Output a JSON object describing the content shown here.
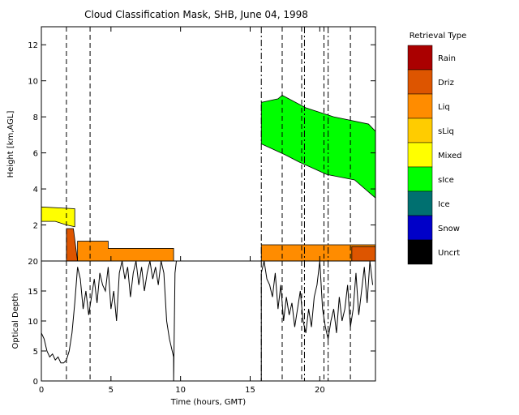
{
  "chart_data": [
    {
      "type": "heatmap",
      "title": "Cloud Classification Mask, SHB, June 04, 1998",
      "xlabel": "",
      "ylabel": "Height [km,AGL]",
      "xlim": [
        0,
        24
      ],
      "ylim": [
        0,
        13
      ],
      "xticks": [
        "0",
        "5",
        "10",
        "15",
        "20"
      ],
      "yticks": [
        "2",
        "4",
        "6",
        "8",
        "10",
        "12"
      ],
      "vlines_dashed": [
        1.8,
        3.5,
        17.3,
        18.7,
        20.3,
        22.2
      ],
      "vlines_dashdot": [
        15.8,
        18.9,
        20.6
      ],
      "regions": [
        {
          "class": "Mixed",
          "color": "#ffff00",
          "points": [
            [
              0,
              2.2
            ],
            [
              0,
              3.0
            ],
            [
              2.4,
              2.9
            ],
            [
              2.4,
              1.9
            ],
            [
              1.8,
              2.0
            ],
            [
              1.0,
              2.2
            ]
          ]
        },
        {
          "class": "Driz",
          "color": "#dd5500",
          "points": [
            [
              1.8,
              0
            ],
            [
              1.8,
              1.8
            ],
            [
              2.3,
              1.8
            ],
            [
              2.6,
              0
            ]
          ]
        },
        {
          "class": "Liq",
          "color": "#ff8c00",
          "points": [
            [
              2.6,
              0
            ],
            [
              2.6,
              1.1
            ],
            [
              4.8,
              1.1
            ],
            [
              4.8,
              0.7
            ],
            [
              5.5,
              0.7
            ],
            [
              9.5,
              0.7
            ],
            [
              9.5,
              0
            ]
          ]
        },
        {
          "class": "Liq",
          "color": "#ff8c00",
          "points": [
            [
              15.8,
              0
            ],
            [
              15.8,
              0.9
            ],
            [
              24,
              0.9
            ],
            [
              24,
              0
            ]
          ]
        },
        {
          "class": "Driz",
          "color": "#dd5500",
          "points": [
            [
              22.3,
              0
            ],
            [
              22.3,
              0.8
            ],
            [
              24,
              0.8
            ],
            [
              24,
              0
            ]
          ]
        },
        {
          "class": "sIce",
          "color": "#00ff00",
          "points": [
            [
              15.8,
              6.5
            ],
            [
              15.8,
              8.8
            ],
            [
              17.0,
              9.0
            ],
            [
              17.3,
              9.2
            ],
            [
              19.0,
              8.5
            ],
            [
              21.0,
              8.0
            ],
            [
              23.5,
              7.6
            ],
            [
              24,
              7.2
            ],
            [
              24,
              3.5
            ],
            [
              22.5,
              4.5
            ],
            [
              20.5,
              4.8
            ],
            [
              18.5,
              5.5
            ],
            [
              17.5,
              5.9
            ]
          ]
        }
      ],
      "colorbar": {
        "title": "Retrieval Type",
        "classes": [
          {
            "label": "Rain",
            "color": "#aa0000"
          },
          {
            "label": "Driz",
            "color": "#dd5500"
          },
          {
            "label": "Liq",
            "color": "#ff8c00"
          },
          {
            "label": "sLiq",
            "color": "#ffcc00"
          },
          {
            "label": "Mixed",
            "color": "#ffff00"
          },
          {
            "label": "sIce",
            "color": "#00ff00"
          },
          {
            "label": "Ice",
            "color": "#007070"
          },
          {
            "label": "Snow",
            "color": "#0000c8"
          },
          {
            "label": "Uncrt",
            "color": "#000000"
          }
        ]
      }
    },
    {
      "type": "line",
      "title": "",
      "xlabel": "Time (hours, GMT)",
      "ylabel": "Optical Depth",
      "xlim": [
        0,
        24
      ],
      "ylim": [
        0,
        20
      ],
      "xticks": [
        "0",
        "5",
        "10",
        "15",
        "20"
      ],
      "yticks": [
        "0",
        "5",
        "10",
        "15",
        "20"
      ],
      "vlines_dashed": [
        1.8,
        3.5,
        17.3,
        18.7,
        20.3,
        22.2
      ],
      "vlines_dashdot": [
        15.8,
        18.9,
        20.6
      ],
      "series": [
        {
          "x": [
            0,
            0.2,
            0.4,
            0.6,
            0.8,
            1.0,
            1.2,
            1.4,
            1.6,
            1.8,
            2.0,
            2.2,
            2.4,
            2.6,
            2.8,
            3.0,
            3.2,
            3.4,
            3.6,
            3.8,
            4.0,
            4.2,
            4.4,
            4.6,
            4.8,
            5.0,
            5.2,
            5.4,
            5.6,
            5.8,
            6.0,
            6.2,
            6.4,
            6.6,
            6.8,
            7.0,
            7.2,
            7.4,
            7.6,
            7.8,
            8.0,
            8.2,
            8.4,
            8.6,
            8.8,
            9.0,
            9.2,
            9.4,
            9.5,
            9.5,
            9.6,
            9.7
          ],
          "y": [
            8,
            7,
            5,
            4,
            4.5,
            3.5,
            4,
            3,
            3,
            3.5,
            5,
            8,
            13,
            19,
            17,
            12,
            15,
            11,
            14,
            17,
            13,
            18,
            16,
            15,
            19,
            12,
            15,
            10,
            18,
            20,
            17,
            19,
            14,
            18,
            20,
            16,
            19,
            15,
            18,
            20,
            17,
            19,
            16,
            20,
            18,
            10,
            7,
            5,
            4,
            0,
            18,
            20
          ]
        },
        {
          "x": [
            15.8,
            15.8,
            16.0,
            16.2,
            16.4,
            16.6,
            16.8,
            17.0,
            17.2,
            17.4,
            17.6,
            17.8,
            18.0,
            18.2,
            18.4,
            18.6,
            18.8,
            19.0,
            19.2,
            19.4,
            19.6,
            19.8,
            20.0,
            20.2,
            20.4,
            20.6,
            20.8,
            21.0,
            21.2,
            21.4,
            21.6,
            21.8,
            22.0,
            22.2,
            22.4,
            22.6,
            22.8,
            23.0,
            23.2,
            23.4,
            23.6,
            23.8
          ],
          "y": [
            0,
            18,
            20,
            17,
            16,
            14,
            18,
            12,
            16,
            10,
            14,
            11,
            13,
            9,
            12,
            15,
            10,
            8,
            12,
            9,
            14,
            16,
            20,
            12,
            9,
            7,
            10,
            12,
            8,
            14,
            10,
            12,
            16,
            9,
            12,
            18,
            11,
            15,
            19,
            13,
            20,
            16
          ]
        }
      ]
    }
  ]
}
